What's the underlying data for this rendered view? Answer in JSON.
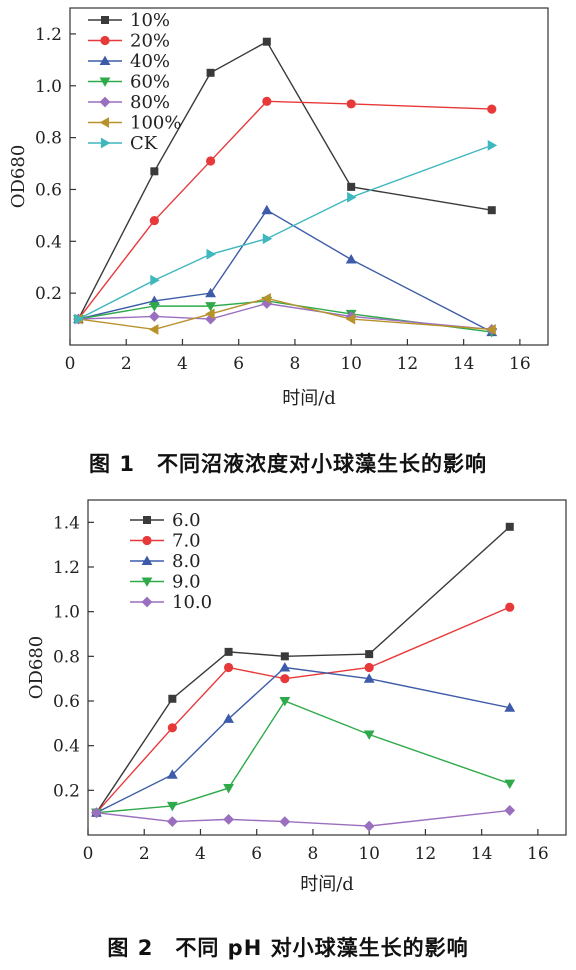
{
  "chart_data": [
    {
      "type": "line",
      "xlabel": "时间/d",
      "ylabel": "OD680",
      "xlim": [
        0,
        17
      ],
      "ylim": [
        0,
        1.3
      ],
      "xticks": [
        0,
        2,
        4,
        6,
        8,
        10,
        12,
        14,
        16
      ],
      "yticks": [
        0.2,
        0.4,
        0.6,
        0.8,
        1.0,
        1.2
      ],
      "yticklabels": [
        "0.2",
        "0.4",
        "0.6",
        "0.8",
        "1.0",
        "1.2"
      ],
      "legend_position": "top-left",
      "x": [
        0.3,
        3,
        5,
        7,
        10,
        15
      ],
      "series": [
        {
          "name": "10%",
          "color": "#3a3a3a",
          "marker": "square",
          "values": [
            0.1,
            0.67,
            1.05,
            1.17,
            0.61,
            0.52
          ]
        },
        {
          "name": "20%",
          "color": "#e8393a",
          "marker": "circle",
          "values": [
            0.1,
            0.48,
            0.71,
            0.94,
            0.93,
            0.91
          ]
        },
        {
          "name": "40%",
          "color": "#3d5ba8",
          "marker": "triangle-up",
          "values": [
            0.1,
            0.17,
            0.2,
            0.52,
            0.33,
            0.05
          ]
        },
        {
          "name": "60%",
          "color": "#2faa4a",
          "marker": "triangle-down",
          "values": [
            0.1,
            0.15,
            0.15,
            0.17,
            0.12,
            0.05
          ]
        },
        {
          "name": "80%",
          "color": "#9b6fbf",
          "marker": "diamond",
          "values": [
            0.1,
            0.11,
            0.1,
            0.16,
            0.11,
            0.06
          ]
        },
        {
          "name": "100%",
          "color": "#b8922b",
          "marker": "triangle-left",
          "values": [
            0.1,
            0.06,
            0.12,
            0.18,
            0.1,
            0.06
          ]
        },
        {
          "name": "CK",
          "color": "#3fb7be",
          "marker": "triangle-right",
          "values": [
            0.1,
            0.25,
            0.35,
            0.41,
            0.57,
            0.77
          ]
        }
      ]
    },
    {
      "type": "line",
      "xlabel": "时间/d",
      "ylabel": "OD680",
      "xlim": [
        0,
        17
      ],
      "ylim": [
        0,
        1.5
      ],
      "xticks": [
        0,
        2,
        4,
        6,
        8,
        10,
        12,
        14,
        16
      ],
      "yticks": [
        0.2,
        0.4,
        0.6,
        0.8,
        1.0,
        1.2,
        1.4
      ],
      "yticklabels": [
        "0.2",
        "0.4",
        "0.6",
        "0.8",
        "1.0",
        "1.2",
        "1.4"
      ],
      "legend_position": "top-left",
      "x": [
        0.3,
        3,
        5,
        7,
        10,
        15
      ],
      "series": [
        {
          "name": "6.0",
          "color": "#3a3a3a",
          "marker": "square",
          "values": [
            0.1,
            0.61,
            0.82,
            0.8,
            0.81,
            1.38
          ]
        },
        {
          "name": "7.0",
          "color": "#e8393a",
          "marker": "circle",
          "values": [
            0.1,
            0.48,
            0.75,
            0.7,
            0.75,
            1.02
          ]
        },
        {
          "name": "8.0",
          "color": "#3d5ba8",
          "marker": "triangle-up",
          "values": [
            0.1,
            0.27,
            0.52,
            0.75,
            0.7,
            0.57
          ]
        },
        {
          "name": "9.0",
          "color": "#2faa4a",
          "marker": "triangle-down",
          "values": [
            0.1,
            0.13,
            0.21,
            0.6,
            0.45,
            0.23
          ]
        },
        {
          "name": "10.0",
          "color": "#9b6fbf",
          "marker": "diamond",
          "values": [
            0.1,
            0.06,
            0.07,
            0.06,
            0.04,
            0.11
          ]
        }
      ]
    }
  ],
  "captions": {
    "chart1": "图 1　不同沼液浓度对小球藻生长的影响",
    "chart2": "图 2　不同 pH 对小球藻生长的影响"
  }
}
